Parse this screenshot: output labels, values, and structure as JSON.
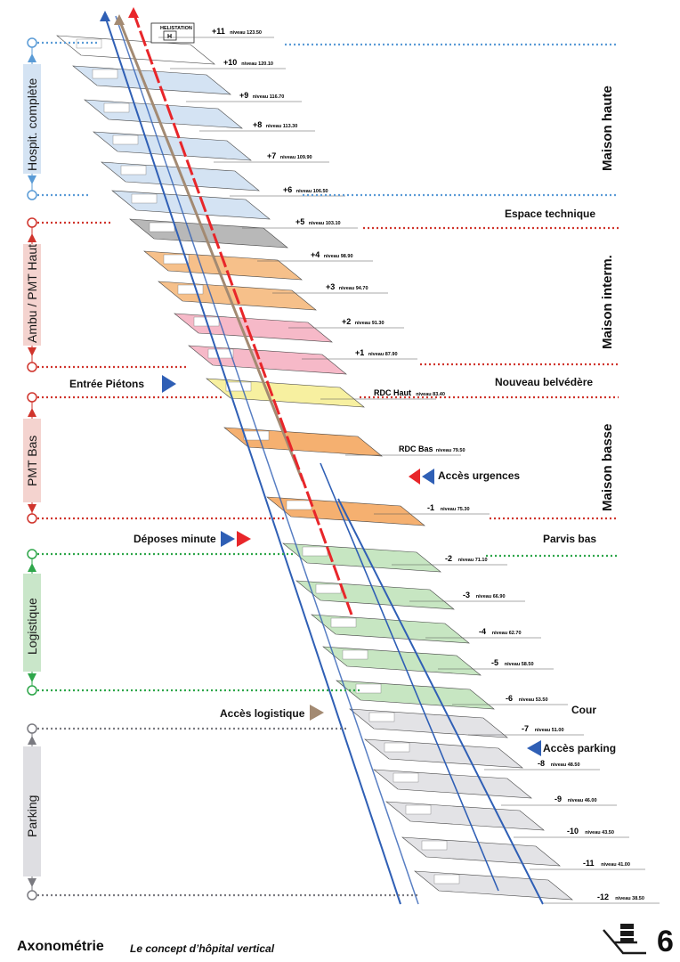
{
  "helistation_label": "HELISTATION",
  "sections": [
    {
      "label": "Hospit. complète",
      "color": "#d4e3f3",
      "arrow_color": "#6ea0d6"
    },
    {
      "label": "Ambu / PMT Haut",
      "color": "#f4d3cf",
      "arrow_color": "#d9483c"
    },
    {
      "label": "PMT Bas",
      "color": "#f4d3cf",
      "arrow_color": "#d9483c"
    },
    {
      "label": "Logistique",
      "color": "#c9e6c9",
      "arrow_color": "#2ea64a"
    },
    {
      "label": "Parking",
      "color": "#dedee2",
      "arrow_color": "#7a7a80"
    }
  ],
  "zones": [
    "Maison haute",
    "Maison interm.",
    "Maison basse"
  ],
  "annotations": {
    "espace_technique": "Espace technique",
    "entree_pietons": "Entrée Piétons",
    "nouveau_belvedere": "Nouveau belvédère",
    "acces_urgences": "Accès urgences",
    "deposes_minute": "Déposes minute",
    "parvis_bas": "Parvis bas",
    "acces_logistique": "Accès logistique",
    "cour": "Cour",
    "acces_parking": "Accès parking"
  },
  "levels": [
    {
      "num": "+11",
      "niv": "niveau 123.50",
      "fill": "#ffffff"
    },
    {
      "num": "+10",
      "niv": "niveau 120.10",
      "fill": "#d4e3f3"
    },
    {
      "num": "+9",
      "niv": "niveau 116.70",
      "fill": "#d4e3f3"
    },
    {
      "num": "+8",
      "niv": "niveau 113.30",
      "fill": "#d4e3f3"
    },
    {
      "num": "+7",
      "niv": "niveau 109.90",
      "fill": "#d4e3f3"
    },
    {
      "num": "+6",
      "niv": "niveau 106.50",
      "fill": "#d4e3f3"
    },
    {
      "num": "+5",
      "niv": "niveau 103.10",
      "fill": "#b8b8b8"
    },
    {
      "num": "+4",
      "niv": "niveau 98.90",
      "fill": "#f6c08a"
    },
    {
      "num": "+3",
      "niv": "niveau 94.70",
      "fill": "#f6c08a"
    },
    {
      "num": "+2",
      "niv": "niveau 91.30",
      "fill": "#f6b9c8"
    },
    {
      "num": "+1",
      "niv": "niveau 87.90",
      "fill": "#f6b9c8"
    },
    {
      "num": "RDC Haut",
      "niv": "niveau 83.40",
      "fill": "#f7f0a0"
    },
    {
      "num": "RDC Bas",
      "niv": "niveau 79.50",
      "fill": "#f5b070"
    },
    {
      "num": "-1",
      "niv": "niveau 75.30",
      "fill": "#f5b070"
    },
    {
      "num": "-2",
      "niv": "niveau 71.10",
      "fill": "#c7e6c2"
    },
    {
      "num": "-3",
      "niv": "niveau 66.90",
      "fill": "#c7e6c2"
    },
    {
      "num": "-4",
      "niv": "niveau 62.70",
      "fill": "#c7e6c2"
    },
    {
      "num": "-5",
      "niv": "niveau 58.50",
      "fill": "#c7e6c2"
    },
    {
      "num": "-6",
      "niv": "niveau 53.50",
      "fill": "#c7e6c2"
    },
    {
      "num": "-7",
      "niv": "niveau 51.00",
      "fill": "#e3e3e6"
    },
    {
      "num": "-8",
      "niv": "niveau 48.50",
      "fill": "#e3e3e6"
    },
    {
      "num": "-9",
      "niv": "niveau 46.00",
      "fill": "#e3e3e6"
    },
    {
      "num": "-10",
      "niv": "niveau 43.50",
      "fill": "#e3e3e6"
    },
    {
      "num": "-11",
      "niv": "niveau 41.00",
      "fill": "#e3e3e6"
    },
    {
      "num": "-12",
      "niv": "niveau 38.50",
      "fill": "#e3e3e6"
    }
  ],
  "footer": {
    "title": "Axonométrie",
    "subtitle": "Le concept d’hôpital vertical",
    "page": "6"
  },
  "colors": {
    "blue": "#2f5fb5",
    "red": "#e8262a",
    "brown": "#a38a72",
    "dot_blue": "#5a9bd6",
    "dot_red": "#d0342c",
    "dot_green": "#2ea64a",
    "dot_gray": "#7a7a80"
  }
}
